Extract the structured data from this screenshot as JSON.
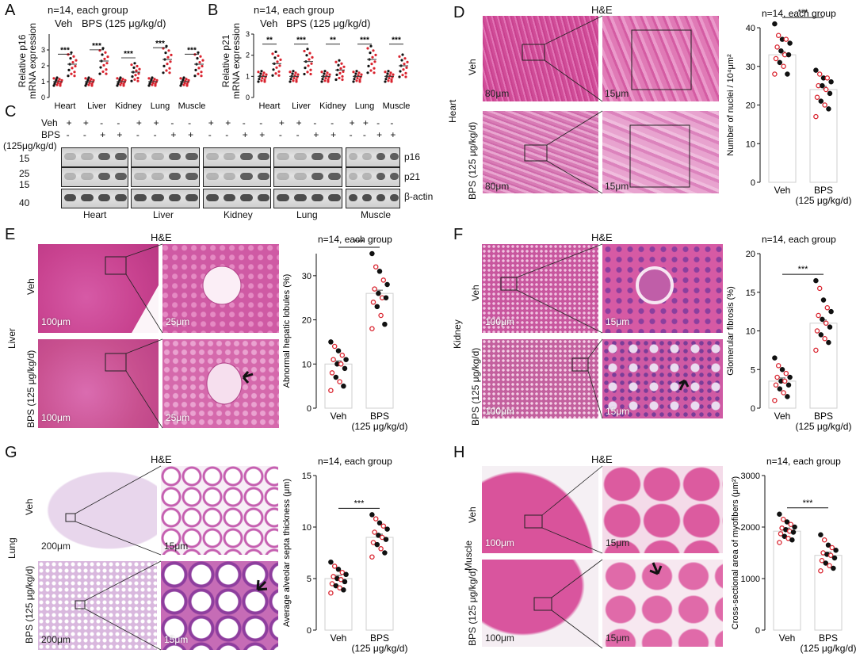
{
  "panels": {
    "A": {
      "label": "A",
      "note": "n=14, each group",
      "legend_veh": "Veh",
      "legend_bps": "BPS (125 μg/kg/d)",
      "ylabel": "Relative p16\nmRNA expression"
    },
    "B": {
      "label": "B",
      "note": "n=14, each group",
      "legend_veh": "Veh",
      "legend_bps": "BPS (125 μg/kg/d)",
      "ylabel": "Relative p21\nmRNA expression"
    },
    "C": {
      "label": "C",
      "row_veh": "Veh",
      "row_bps": "BPS",
      "row_dose": "(125μg/kg/d)",
      "plus": "+",
      "minus": "-",
      "mw": [
        "15",
        "25",
        "15",
        "40"
      ],
      "proteins": [
        "p16",
        "p21",
        "β-actin"
      ],
      "tissues": [
        "Heart",
        "Liver",
        "Kidney",
        "Lung",
        "Muscle"
      ]
    },
    "D": {
      "label": "D",
      "stain": "H&E",
      "organ": "Heart",
      "row_veh": "Veh",
      "row_bps": "BPS (125 μg/kg/d)",
      "scale_low": "80μm",
      "scale_high": "15μm"
    },
    "E": {
      "label": "E",
      "stain": "H&E",
      "organ": "Liver",
      "row_veh": "Veh",
      "row_bps": "BPS (125 μg/kg/d)",
      "scale_low": "100μm",
      "scale_high": "25μm"
    },
    "F": {
      "label": "F",
      "stain": "H&E",
      "organ": "Kidney",
      "row_veh": "Veh",
      "row_bps": "BPS (125 μg/kg/d)",
      "scale_low": "100μm",
      "scale_high": "15μm"
    },
    "G": {
      "label": "G",
      "stain": "H&E",
      "organ": "Lung",
      "row_veh": "Veh",
      "row_bps": "BPS (125 μg/kg/d)",
      "scale_low": "200μm",
      "scale_high": "15μm"
    },
    "H": {
      "label": "H",
      "stain": "H&E",
      "organ": "Muscle",
      "row_veh": "Veh",
      "row_bps": "BPS (125 μg/kg/d)",
      "scale_low": "100μm",
      "scale_high": "15μm"
    }
  },
  "colors": {
    "veh_dot": "#111111",
    "bps_dot": "#d9232e",
    "bar_edge": "#cfcfcf",
    "he_pink": "#d24f98",
    "heart_bg": "#d8559f",
    "muscle_bg": "#e07ab4"
  },
  "chart_data": [
    {
      "id": "A",
      "type": "scatter",
      "title": "n=14, each group",
      "ylabel": "Relative p16 mRNA expression",
      "categories": [
        "Heart",
        "Liver",
        "Kidney",
        "Lung",
        "Muscle"
      ],
      "series": [
        {
          "name": "Veh",
          "values": [
            1.0,
            1.0,
            1.0,
            1.0,
            1.0
          ]
        },
        {
          "name": "BPS (125 μg/kg/d)",
          "values": [
            2.1,
            2.3,
            1.6,
            2.4,
            2.1
          ]
        }
      ],
      "significance": [
        "***",
        "***",
        "***",
        "***",
        "***"
      ]
    },
    {
      "id": "B",
      "type": "scatter",
      "title": "n=14, each group",
      "ylabel": "Relative p21 mRNA expression",
      "categories": [
        "Heart",
        "Liver",
        "Kidney",
        "Lung",
        "Muscle"
      ],
      "series": [
        {
          "name": "Veh",
          "values": [
            1.0,
            1.0,
            1.0,
            1.0,
            1.0
          ]
        },
        {
          "name": "BPS (125 μg/kg/d)",
          "values": [
            1.6,
            1.7,
            1.3,
            1.8,
            1.5
          ]
        }
      ],
      "significance": [
        "**",
        "***",
        "**",
        "***",
        "***"
      ]
    },
    {
      "id": "D",
      "type": "bar",
      "title": "n=14, each group",
      "ylabel": "Number of nuclei / 10⁴μm²",
      "categories": [
        "Veh",
        "BPS\n(125 μg/kg/d)"
      ],
      "values": [
        33,
        24
      ],
      "ylim": [
        0,
        40
      ],
      "yticks": [
        0,
        10,
        20,
        30,
        40
      ],
      "significance": "***",
      "points": [
        [
          41,
          38,
          37,
          37,
          36,
          35,
          34,
          33,
          33,
          32,
          31,
          30,
          28,
          28
        ],
        [
          29,
          28,
          27,
          27,
          26,
          25,
          25,
          24,
          23,
          22,
          21,
          20,
          19,
          17
        ]
      ]
    },
    {
      "id": "E",
      "type": "bar",
      "title": "n=14, each group",
      "ylabel": "Abnormal hepatic lobules (%)",
      "categories": [
        "Veh",
        "BPS\n(125 μg/kg/d)"
      ],
      "values": [
        10,
        26
      ],
      "ylim": [
        0,
        35
      ],
      "yticks": [
        0,
        10,
        20,
        30
      ],
      "significance": "***",
      "points": [
        [
          15,
          14,
          13,
          12,
          11,
          11,
          10,
          10,
          9,
          8,
          7,
          6,
          5,
          4
        ],
        [
          35,
          32,
          31,
          29,
          28,
          27,
          26,
          25,
          25,
          24,
          23,
          21,
          19,
          18
        ]
      ]
    },
    {
      "id": "F",
      "type": "bar",
      "title": "n=14, each group",
      "ylabel": "Glomerular fibrosis (%)",
      "categories": [
        "Veh",
        "BPS\n(125 μg/kg/d)"
      ],
      "values": [
        3.5,
        11
      ],
      "ylim": [
        0,
        20
      ],
      "yticks": [
        0,
        5,
        10,
        15,
        20
      ],
      "significance": "***",
      "points": [
        [
          6.5,
          5.5,
          5,
          4.5,
          4,
          4,
          3.5,
          3.5,
          3,
          3,
          2.5,
          2,
          1.5,
          1
        ],
        [
          16.5,
          15.5,
          14,
          13,
          12.5,
          12,
          11.5,
          11,
          10.5,
          10,
          9.5,
          9,
          8.5,
          7.5
        ]
      ]
    },
    {
      "id": "G",
      "type": "bar",
      "title": "n=14, each group",
      "ylabel": "Average alveolar septa thickness (μm)",
      "categories": [
        "Veh",
        "BPS\n(125 μg/kg/d)"
      ],
      "values": [
        5,
        9
      ],
      "ylim": [
        0,
        15
      ],
      "yticks": [
        0,
        5,
        10,
        15
      ],
      "significance": "***",
      "points": [
        [
          6.6,
          6.2,
          5.9,
          5.6,
          5.4,
          5.2,
          5.0,
          4.9,
          4.7,
          4.5,
          4.3,
          4.1,
          3.9,
          3.6
        ],
        [
          11.2,
          10.8,
          10.4,
          10.1,
          9.8,
          9.5,
          9.2,
          9.0,
          8.8,
          8.5,
          8.3,
          7.9,
          7.5,
          7.1
        ]
      ]
    },
    {
      "id": "H",
      "type": "bar",
      "title": "n=14, each group",
      "ylabel": "Cross-sectional area of myofibers (μm²)",
      "categories": [
        "Veh",
        "BPS\n(125 μg/kg/d)"
      ],
      "values": [
        1920,
        1450
      ],
      "ylim": [
        0,
        3000
      ],
      "yticks": [
        0,
        1000,
        2000,
        3000
      ],
      "significance": "***",
      "points": [
        [
          2250,
          2150,
          2100,
          2050,
          2000,
          1980,
          1950,
          1920,
          1900,
          1870,
          1820,
          1780,
          1750,
          1700
        ],
        [
          1850,
          1750,
          1650,
          1600,
          1550,
          1500,
          1470,
          1450,
          1400,
          1350,
          1300,
          1250,
          1200,
          1150
        ]
      ]
    }
  ]
}
